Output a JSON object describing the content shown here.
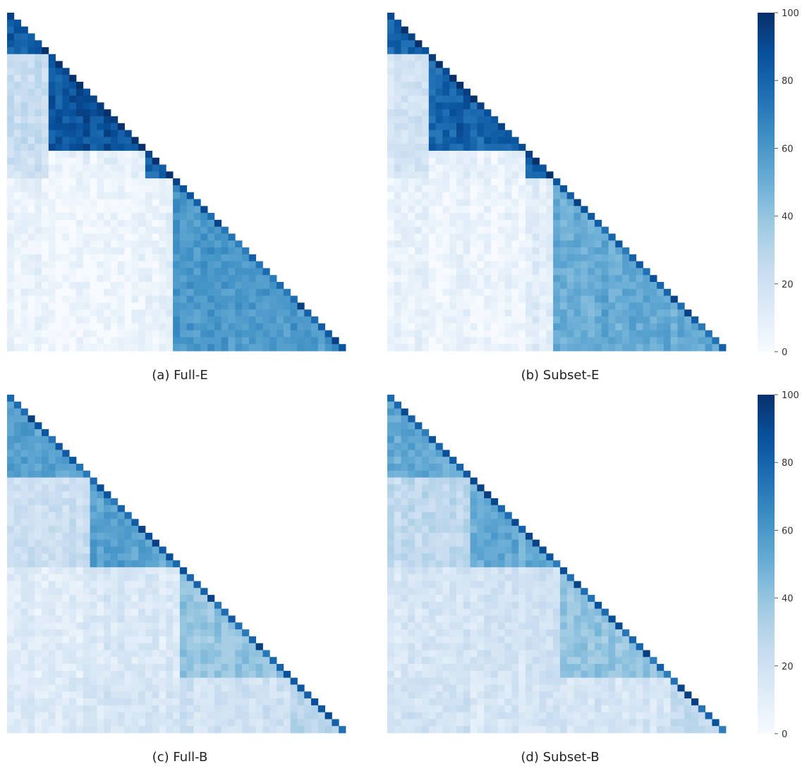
{
  "chart_data": [
    {
      "type": "heatmap",
      "title": "(a) Full-E",
      "subtitle": "",
      "xlabel": "",
      "ylabel": "",
      "colormap": "Blues",
      "value_range": [
        0,
        100
      ],
      "n": 49,
      "shape": "lower-triangular",
      "blocks": [
        [
          0,
          5
        ],
        [
          6,
          19
        ],
        [
          20,
          23
        ],
        [
          24,
          49
        ]
      ],
      "block_means": [
        [
          82,
          null,
          null,
          null
        ],
        [
          24,
          86,
          null,
          null
        ],
        [
          20,
          8,
          82,
          null
        ],
        [
          6,
          4,
          8,
          60
        ]
      ],
      "grid": false,
      "colorbar": false
    },
    {
      "type": "heatmap",
      "title": "(b) Subset-E",
      "subtitle": "",
      "xlabel": "",
      "ylabel": "",
      "colormap": "Blues",
      "value_range": [
        0,
        100
      ],
      "n": 49,
      "shape": "lower-triangular",
      "blocks": [
        [
          0,
          5
        ],
        [
          6,
          19
        ],
        [
          20,
          23
        ],
        [
          24,
          49
        ]
      ],
      "block_means": [
        [
          80,
          null,
          null,
          null
        ],
        [
          18,
          80,
          null,
          null
        ],
        [
          16,
          8,
          80,
          null
        ],
        [
          6,
          5,
          10,
          52
        ]
      ],
      "grid": false,
      "colorbar": true
    },
    {
      "type": "heatmap",
      "title": "(c) Full-B",
      "subtitle": "",
      "xlabel": "",
      "ylabel": "",
      "colormap": "Blues",
      "value_range": [
        0,
        100
      ],
      "n": 49,
      "shape": "lower-triangular",
      "blocks": [
        [
          0,
          11
        ],
        [
          12,
          24
        ],
        [
          25,
          40
        ],
        [
          41,
          49
        ]
      ],
      "block_means": [
        [
          56,
          null,
          null,
          null
        ],
        [
          22,
          55,
          null,
          null
        ],
        [
          12,
          14,
          40,
          null
        ],
        [
          14,
          16,
          20,
          30
        ]
      ],
      "grid": false,
      "colorbar": false
    },
    {
      "type": "heatmap",
      "title": "(d) Subset-B",
      "subtitle": "",
      "xlabel": "",
      "ylabel": "",
      "colormap": "Blues",
      "value_range": [
        0,
        100
      ],
      "n": 49,
      "shape": "lower-triangular",
      "blocks": [
        [
          0,
          11
        ],
        [
          12,
          24
        ],
        [
          25,
          40
        ],
        [
          41,
          49
        ]
      ],
      "block_means": [
        [
          52,
          null,
          null,
          null
        ],
        [
          26,
          52,
          null,
          null
        ],
        [
          16,
          18,
          40,
          null
        ],
        [
          18,
          16,
          18,
          26
        ]
      ],
      "grid": false,
      "colorbar": true
    }
  ],
  "colorbar": {
    "ticks": [
      "0",
      "20",
      "40",
      "60",
      "80",
      "100"
    ],
    "colors": [
      "#f7fbff",
      "#deebf7",
      "#c6dbef",
      "#9ecae1",
      "#6baed6",
      "#4292c6",
      "#2171b5",
      "#08519c",
      "#08306b"
    ]
  }
}
